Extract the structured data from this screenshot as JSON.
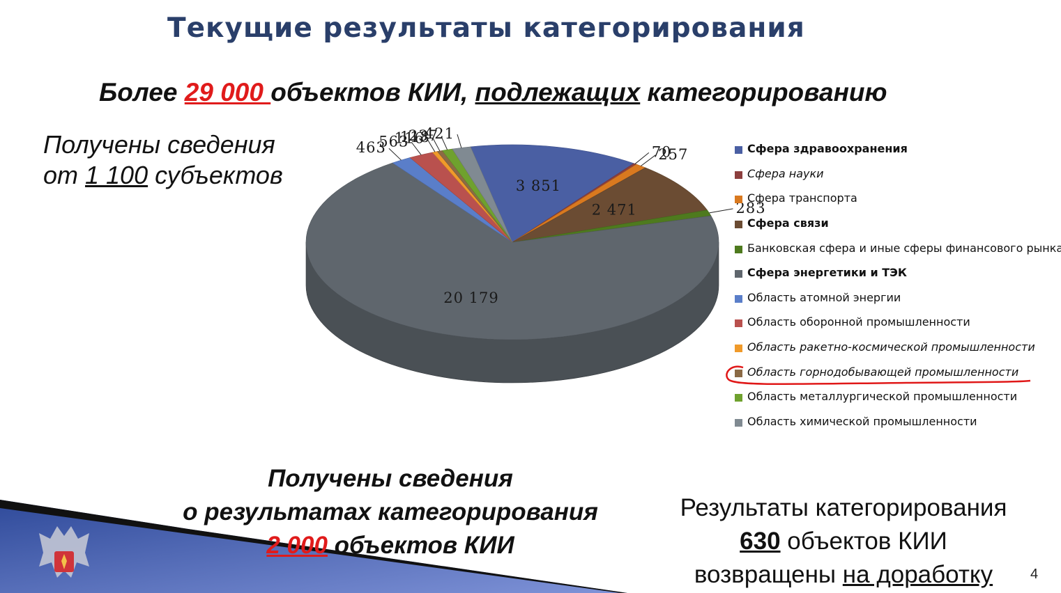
{
  "slide": {
    "title": "Текущие результаты категорирования",
    "headline": {
      "pre": "Более ",
      "number": "29 000 ",
      "mid": "объектов КИИ, ",
      "underlined": "подлежащих",
      "post": " категорированию"
    },
    "received": {
      "line1": "Получены сведения",
      "line2_pre": "от ",
      "line2_number": "1 100",
      "line2_post": " субъектов"
    },
    "bottom_left": {
      "line1": "Получены сведения",
      "line2": "о результатах категорирования",
      "number": "2 000",
      "line3_post": " объектов КИИ"
    },
    "bottom_right": {
      "line1": "Результаты категорирования",
      "number": "630",
      "line2_post": " объектов КИИ",
      "line3_pre": "возвращены ",
      "line3_underlined": "на доработку"
    },
    "page_number": "4"
  },
  "chart_data": {
    "type": "pie",
    "style": "3d",
    "series": [
      {
        "name": "Сфера здравоохранения",
        "value": 3851,
        "label": "3 851",
        "color": "#4a5fa3",
        "bold": true,
        "italic": false
      },
      {
        "name": "Сфера науки",
        "value": 70,
        "label": "70",
        "color": "#8c3f3e",
        "bold": false,
        "italic": true
      },
      {
        "name": "Сфера транспорта",
        "value": 257,
        "label": "257",
        "color": "#d9791f",
        "bold": false,
        "italic": false
      },
      {
        "name": "Сфера связи",
        "value": 2471,
        "label": "2 471",
        "color": "#6b4c33",
        "bold": true,
        "italic": false
      },
      {
        "name": "Банковская сфера и иные сферы финансового рынка",
        "value": 283,
        "label": "283",
        "color": "#4e7a1e",
        "bold": false,
        "italic": false
      },
      {
        "name": "Сфера энергетики и ТЭК",
        "value": 20179,
        "label": "20 179",
        "color": "#5f666d",
        "bold": true,
        "italic": false
      },
      {
        "name": "Область атомной энергии",
        "value": 463,
        "label": "463",
        "color": "#5a7ec9",
        "bold": false,
        "italic": false
      },
      {
        "name": "Область оборонной промышленности",
        "value": 563,
        "label": "563",
        "color": "#b9514e",
        "bold": false,
        "italic": false
      },
      {
        "name": "Область ракетно-космической промышленности",
        "value": 116,
        "label": "116",
        "color": "#f09a2a",
        "bold": false,
        "italic": true
      },
      {
        "name": "Область горнодобывающей промышленности",
        "value": 118,
        "label": "118",
        "color": "#8b6a45",
        "bold": false,
        "italic": true,
        "highlighted": true
      },
      {
        "name": "Область металлургической промышленности",
        "value": 237,
        "label": "237",
        "color": "#6fa12e",
        "bold": false,
        "italic": false
      },
      {
        "name": "Область химической промышленности",
        "value": 421,
        "label": "421",
        "color": "#808a92",
        "bold": false,
        "italic": false
      }
    ],
    "legend_position": "right"
  }
}
